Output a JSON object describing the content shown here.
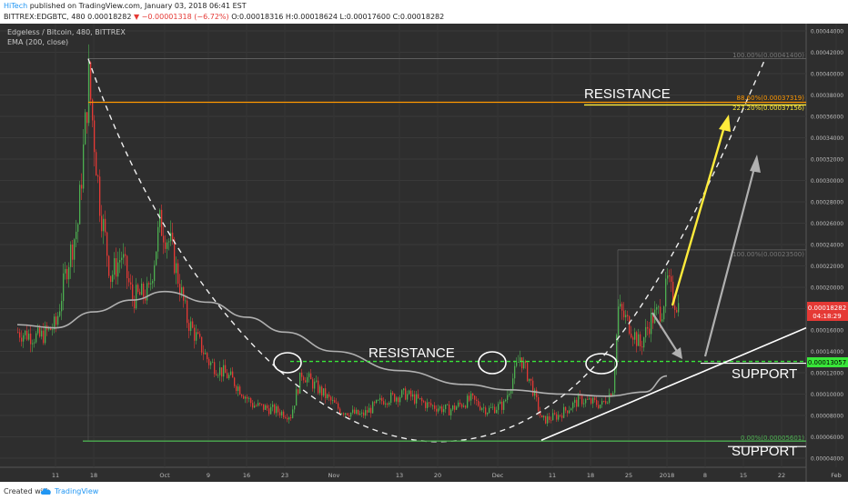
{
  "header": {
    "author": "HiTech",
    "published": "published on TradingView.com, January 03, 2018 06:41 EST",
    "symbol": "BITTREX:EDGBTC, 480",
    "last": "0.00018282",
    "change": "▼ −0.00001318 (−6.72%)",
    "ohlc": "O:0.00018316 H:0.00018624 L:0.00017600 C:0.00018282"
  },
  "legend": {
    "title": "Edgeless / Bitcoin, 480, BITTREX",
    "indicator": "EMA (200, close)"
  },
  "annotations": {
    "resistance_top": "RESISTANCE",
    "resistance_mid": "RESISTANCE",
    "support_mid": "SUPPORT",
    "support_bottom": "SUPPORT",
    "fib_top_100": "100.00%(0.00041400)",
    "fib_top_886": "88.60%(0.00037319)",
    "fib_2272": "227.20%(0.00037156)",
    "fib_second_100": "100.00%(0.00023500)",
    "fib_zero": "0.00%(0.00005601)"
  },
  "price_tags": {
    "last_price": "0.00018282",
    "countdown": "04:18:29",
    "support_price": "0.00013057"
  },
  "footer": {
    "created": "Created with",
    "brand": "TradingView"
  },
  "colors": {
    "background": "#2e2e2e",
    "candle_up": "#4caf50",
    "candle_down": "#e53935",
    "ema": "#b0b0b0",
    "orange_line": "#ff9800",
    "yellow_arrow": "#ffeb3b",
    "green_line": "#4caf50",
    "green_dashed": "#39e639"
  },
  "chart_data": {
    "type": "candlestick",
    "title": "Edgeless / Bitcoin, 480, BITTREX",
    "xlabel": "",
    "ylabel": "",
    "x_ticks": [
      "11",
      "18",
      "Oct",
      "9",
      "16",
      "23",
      "Nov",
      "13",
      "20",
      "Dec",
      "11",
      "18",
      "25",
      "2018",
      "8",
      "15",
      "22",
      "Feb"
    ],
    "y_ticks": [
      4e-05,
      6e-05,
      8e-05,
      0.0001,
      0.00012,
      0.00014,
      0.00016,
      0.00018,
      0.0002,
      0.00022,
      0.00024,
      0.00026,
      0.00028,
      0.0003,
      0.00032,
      0.00034,
      0.00036,
      0.00038,
      0.0004,
      0.00042,
      0.00044
    ],
    "ylim": [
      3.8e-05,
      0.000446
    ],
    "close_path": [
      [
        "Sep 4",
        0.000158
      ],
      [
        "Sep 8",
        0.000153
      ],
      [
        "Sep 11",
        0.000165
      ],
      [
        "Sep 13",
        0.00022
      ],
      [
        "Sep 15",
        0.00026
      ],
      [
        "Sep 17",
        0.000395
      ],
      [
        "Sep 19",
        0.00028
      ],
      [
        "Sep 21",
        0.00021
      ],
      [
        "Sep 23",
        0.00023
      ],
      [
        "Sep 25",
        0.00019
      ],
      [
        "Sep 28",
        0.000195
      ],
      [
        "Sep 30",
        0.00026
      ],
      [
        "Oct 2",
        0.00024
      ],
      [
        "Oct 5",
        0.00017
      ],
      [
        "Oct 9",
        0.00013
      ],
      [
        "Oct 13",
        0.000115
      ],
      [
        "Oct 17",
        9e-05
      ],
      [
        "Oct 21",
        8.5e-05
      ],
      [
        "Oct 24",
        8e-05
      ],
      [
        "Oct 26",
        0.00012
      ],
      [
        "Oct 29",
        0.000105
      ],
      [
        "Nov 2",
        8.5e-05
      ],
      [
        "Nov 6",
        8e-05
      ],
      [
        "Nov 10",
        9.5e-05
      ],
      [
        "Nov 14",
        0.0001
      ],
      [
        "Nov 18",
        9e-05
      ],
      [
        "Nov 22",
        8.5e-05
      ],
      [
        "Nov 26",
        9.5e-05
      ],
      [
        "Nov 29",
        8.5e-05
      ],
      [
        "Dec 2",
        9e-05
      ],
      [
        "Dec 5",
        0.000135
      ],
      [
        "Dec 7",
        0.00011
      ],
      [
        "Dec 9",
        7.5e-05
      ],
      [
        "Dec 12",
        8e-05
      ],
      [
        "Dec 16",
        9.5e-05
      ],
      [
        "Dec 20",
        9e-05
      ],
      [
        "Dec 22",
        0.000105
      ],
      [
        "Dec 23",
        0.00018
      ],
      [
        "Dec 25",
        0.000165
      ],
      [
        "Dec 27",
        0.000145
      ],
      [
        "Dec 29",
        0.00017
      ],
      [
        "Dec 31",
        0.00018
      ],
      [
        "Jan 1",
        0.000205
      ],
      [
        "Jan 2",
        0.00019
      ],
      [
        "Jan 3",
        0.00018282
      ]
    ],
    "ema200": [
      [
        "Sep 4",
        0.000165
      ],
      [
        "Sep 11",
        0.000162
      ],
      [
        "Sep 18",
        0.000177
      ],
      [
        "Sep 25",
        0.000188
      ],
      [
        "Oct 1",
        0.000196
      ],
      [
        "Oct 9",
        0.000186
      ],
      [
        "Oct 16",
        0.000172
      ],
      [
        "Oct 23",
        0.000158
      ],
      [
        "Nov 1",
        0.00014
      ],
      [
        "Nov 13",
        0.000122
      ],
      [
        "Nov 25",
        0.000109
      ],
      [
        "Dec 3",
        0.000104
      ],
      [
        "Dec 13",
        0.0001
      ],
      [
        "Dec 21",
        9.8e-05
      ],
      [
        "Dec 28",
        0.000102
      ],
      [
        "Jan 1",
        0.000117
      ]
    ],
    "fib_levels": [
      {
        "label": "100.00%(0.00041400)",
        "value": 0.000414
      },
      {
        "label": "88.60%(0.00037319)",
        "value": 0.00037319
      },
      {
        "label": "227.20%(0.00037156)",
        "value": 0.00037156
      },
      {
        "label": "100.00%(0.00023500)",
        "value": 0.000235
      },
      {
        "label": "0.00%(0.00005601)",
        "value": 5.601e-05
      }
    ],
    "support_level": 0.00013057,
    "last_price": 0.00018282
  }
}
